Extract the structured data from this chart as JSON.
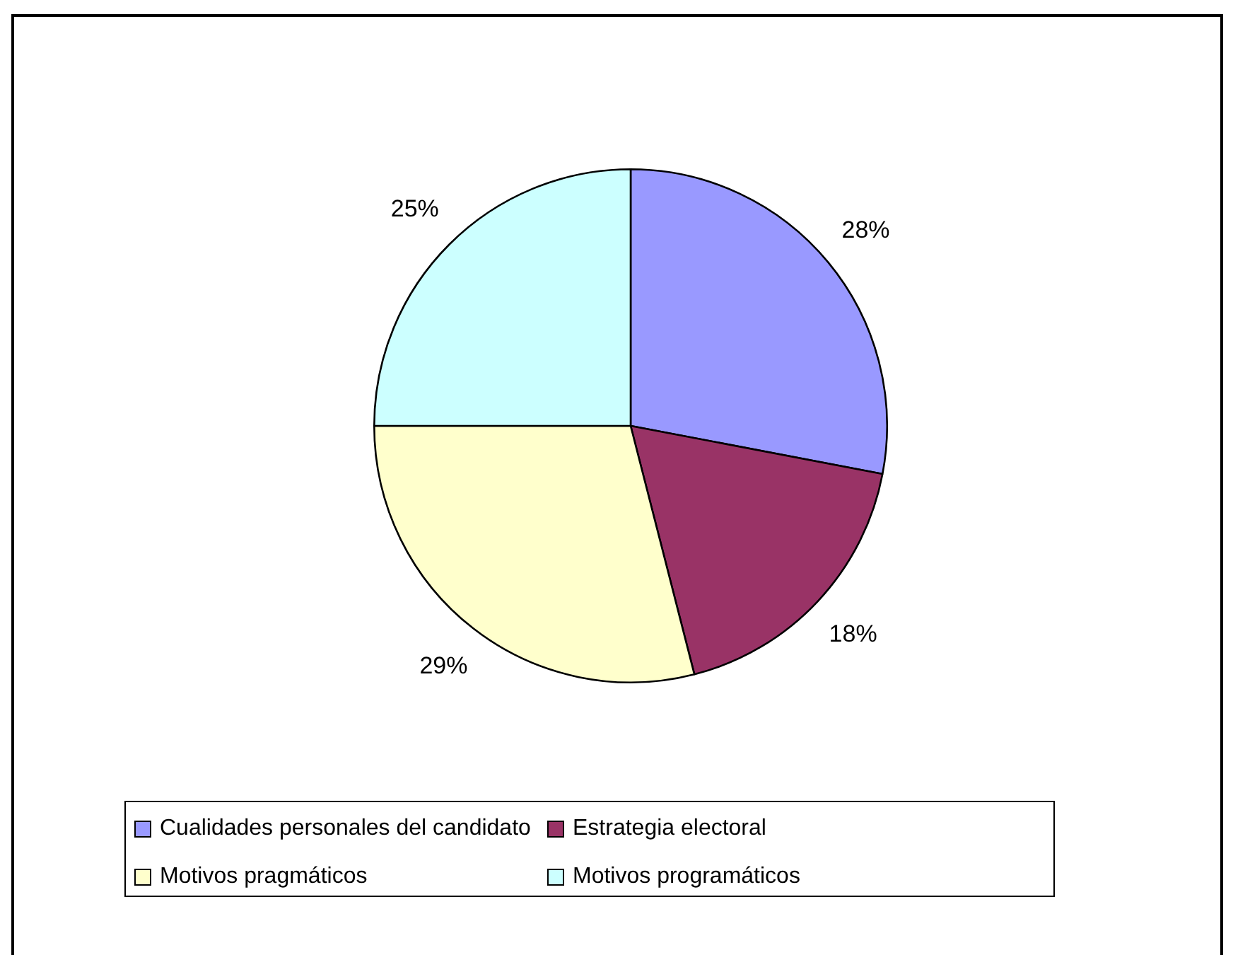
{
  "chart_data": {
    "type": "pie",
    "categories": [
      "Cualidades personales del candidato",
      "Estrategia electoral",
      "Motivos pragmáticos",
      "Motivos programáticos"
    ],
    "values": [
      28,
      18,
      29,
      25
    ],
    "colors": [
      "#9999ff",
      "#993366",
      "#ffffcc",
      "#ccffff"
    ],
    "value_labels": [
      "28%",
      "18%",
      "29%",
      "25%"
    ],
    "legend": "bottom"
  }
}
